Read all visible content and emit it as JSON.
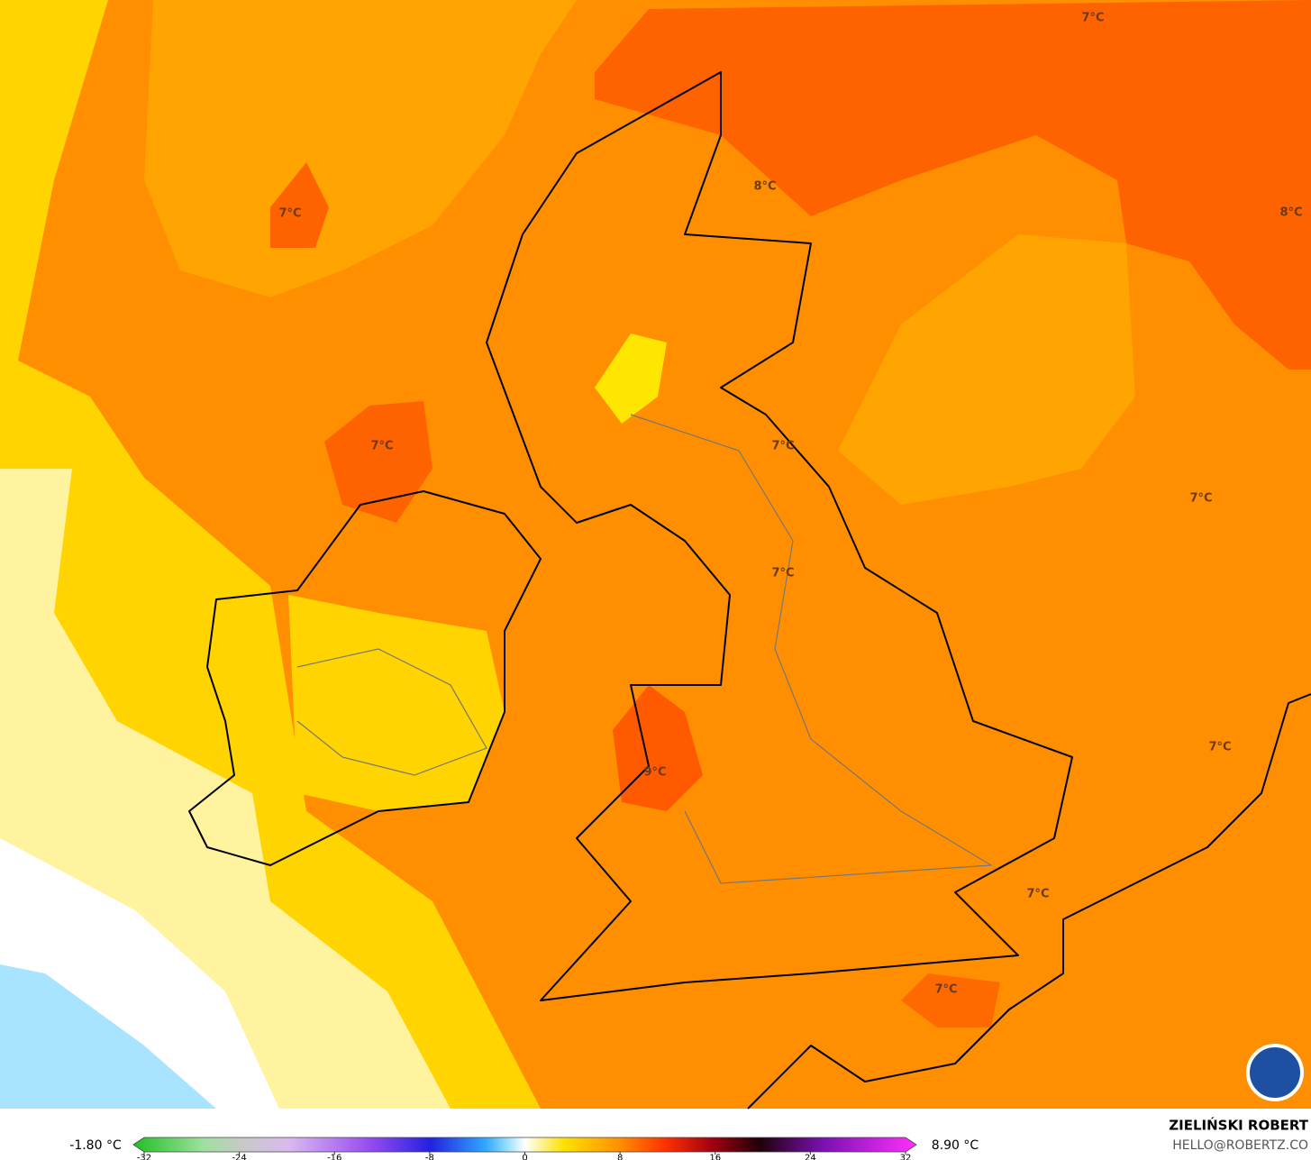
{
  "map": {
    "labels": [
      "7°C",
      "8°C",
      "7°C",
      "8°C",
      "7°C",
      "7°C",
      "7°C",
      "7°C",
      "9°C",
      "7°C",
      "7°C",
      "7°C"
    ]
  },
  "colorbar": {
    "min_label": "-1.80 °C",
    "max_label": "8.90 °C",
    "range": [
      -32,
      32
    ],
    "ticks": [
      -32,
      -24,
      -16,
      -8,
      0,
      8,
      16,
      24,
      32
    ]
  },
  "credit": {
    "author": "ZIELIŃSKI ROBERT",
    "email": "HELLO@ROBERTZ.CO"
  }
}
